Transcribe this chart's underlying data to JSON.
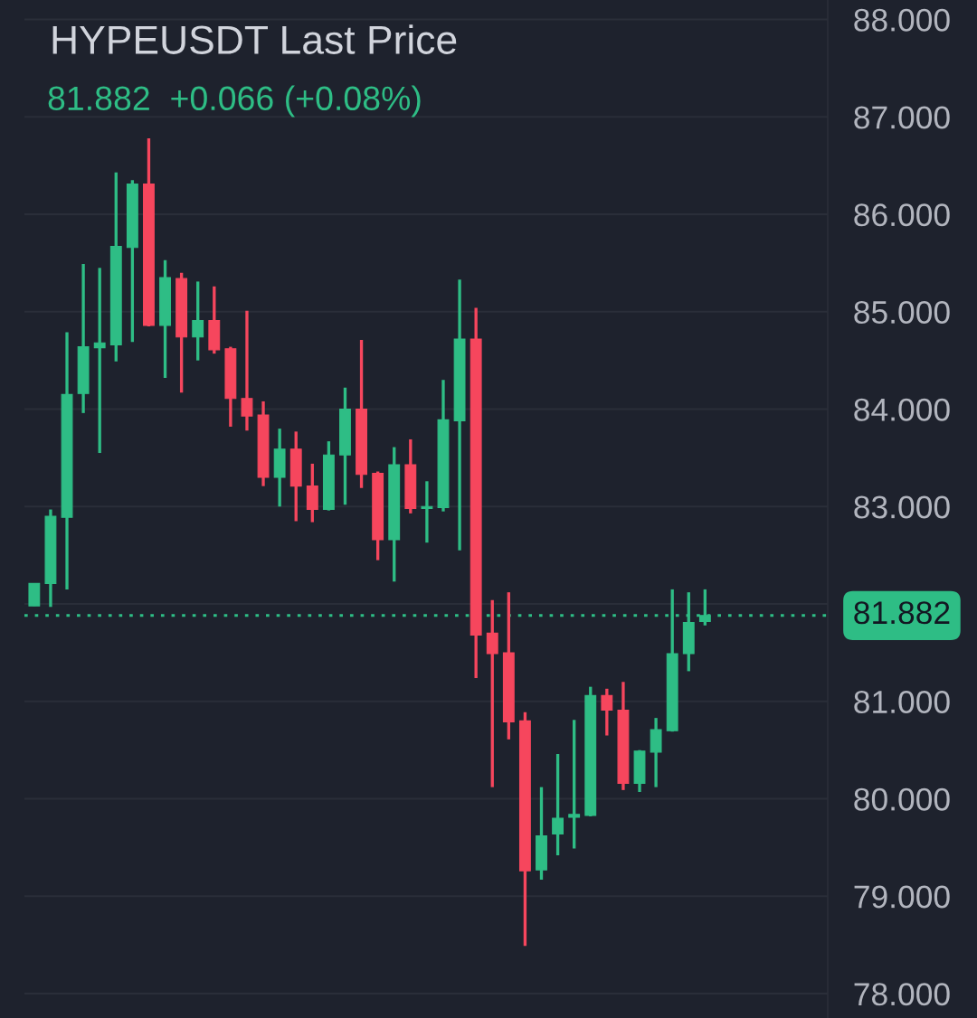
{
  "chart_data": {
    "type": "candlestick",
    "title": "HYPEUSDT Last Price",
    "subtitle": "81.882  +0.066 (+0.08%)",
    "categories": [
      null,
      null,
      null,
      null,
      null,
      null,
      null,
      null,
      null,
      null,
      null,
      null,
      null,
      null,
      null,
      null,
      null,
      null,
      null,
      null,
      null,
      null,
      null,
      null,
      null,
      null,
      null,
      null,
      null,
      null,
      null,
      null,
      null,
      null,
      null,
      null,
      null,
      null,
      null,
      null,
      null,
      null
    ],
    "ohlc": [
      [
        81.98,
        82.21,
        81.98,
        82.21
      ],
      [
        82.21,
        82.97,
        81.97,
        82.9
      ],
      [
        82.89,
        84.79,
        82.15,
        84.15
      ],
      [
        84.16,
        85.49,
        83.96,
        84.64
      ],
      [
        84.63,
        85.45,
        83.55,
        84.68
      ],
      [
        84.66,
        86.43,
        84.49,
        85.67
      ],
      [
        85.66,
        86.35,
        84.69,
        86.31
      ],
      [
        86.31,
        86.78,
        84.85,
        84.86
      ],
      [
        84.86,
        85.53,
        84.32,
        85.35
      ],
      [
        85.34,
        85.4,
        84.17,
        84.74
      ],
      [
        84.74,
        85.31,
        84.5,
        84.91
      ],
      [
        84.91,
        85.26,
        84.57,
        84.61
      ],
      [
        84.62,
        84.64,
        83.82,
        84.11
      ],
      [
        84.11,
        85.01,
        83.78,
        83.93
      ],
      [
        83.94,
        84.08,
        83.21,
        83.3
      ],
      [
        83.3,
        83.8,
        83.0,
        83.59
      ],
      [
        83.59,
        83.77,
        82.85,
        83.21
      ],
      [
        83.21,
        83.44,
        82.84,
        82.97
      ],
      [
        82.97,
        83.67,
        82.96,
        83.53
      ],
      [
        83.53,
        84.22,
        83.02,
        84.0
      ],
      [
        84.0,
        84.71,
        83.19,
        83.33
      ],
      [
        83.34,
        83.36,
        82.45,
        82.66
      ],
      [
        82.66,
        83.61,
        82.23,
        83.43
      ],
      [
        83.43,
        83.69,
        82.93,
        82.98
      ],
      [
        82.98,
        83.26,
        82.63,
        83.0
      ],
      [
        82.99,
        84.3,
        82.95,
        83.89
      ],
      [
        83.88,
        85.33,
        82.55,
        84.72
      ],
      [
        84.72,
        85.04,
        81.24,
        81.68
      ],
      [
        81.7,
        82.04,
        80.12,
        81.49
      ],
      [
        81.5,
        82.12,
        80.61,
        80.79
      ],
      [
        80.8,
        80.89,
        78.49,
        79.26
      ],
      [
        79.27,
        80.12,
        79.17,
        79.62
      ],
      [
        79.64,
        80.46,
        79.42,
        79.8
      ],
      [
        79.81,
        80.81,
        79.49,
        79.84
      ],
      [
        79.83,
        81.15,
        79.82,
        81.06
      ],
      [
        81.06,
        81.13,
        80.65,
        80.91
      ],
      [
        80.91,
        81.2,
        80.09,
        80.16
      ],
      [
        80.16,
        80.5,
        80.07,
        80.49
      ],
      [
        80.48,
        80.83,
        80.12,
        80.71
      ],
      [
        80.7,
        82.15,
        80.69,
        81.49
      ],
      [
        81.49,
        82.12,
        81.31,
        81.81
      ],
      [
        81.82,
        82.15,
        81.78,
        81.882
      ]
    ],
    "colors": [
      "#2ebd85",
      "#2ebd85",
      "#2ebd85",
      "#2ebd85",
      "#2ebd85",
      "#2ebd85",
      "#2ebd85",
      "#f6465d",
      "#2ebd85",
      "#f6465d",
      "#2ebd85",
      "#f6465d",
      "#f6465d",
      "#f6465d",
      "#f6465d",
      "#2ebd85",
      "#f6465d",
      "#f6465d",
      "#2ebd85",
      "#2ebd85",
      "#f6465d",
      "#f6465d",
      "#2ebd85",
      "#f6465d",
      "#2ebd85",
      "#2ebd85",
      "#2ebd85",
      "#f6465d",
      "#f6465d",
      "#f6465d",
      "#f6465d",
      "#2ebd85",
      "#2ebd85",
      "#2ebd85",
      "#2ebd85",
      "#f6465d",
      "#f6465d",
      "#2ebd85",
      "#2ebd85",
      "#2ebd85",
      "#2ebd85",
      "#2ebd85"
    ],
    "ylim": [
      77.75,
      88.2
    ],
    "yticks": [
      {
        "value": 78,
        "label": "78.000"
      },
      {
        "value": 79,
        "label": "79.000"
      },
      {
        "value": 80,
        "label": "80.000"
      },
      {
        "value": 81,
        "label": "81.000"
      },
      {
        "value": 82,
        "label": null
      },
      {
        "value": 83,
        "label": "83.000"
      },
      {
        "value": 84,
        "label": "84.000"
      },
      {
        "value": 85,
        "label": "85.000"
      },
      {
        "value": 86,
        "label": "86.000"
      },
      {
        "value": 87,
        "label": "87.000"
      },
      {
        "value": 88,
        "label": "88.000"
      }
    ],
    "grid": "y",
    "tick_labels": "y",
    "ref_lines": [
      {
        "axis": "y",
        "value": 81.882,
        "label": "81.882",
        "color": "#2ebd85",
        "line_style": "dotted"
      }
    ]
  }
}
